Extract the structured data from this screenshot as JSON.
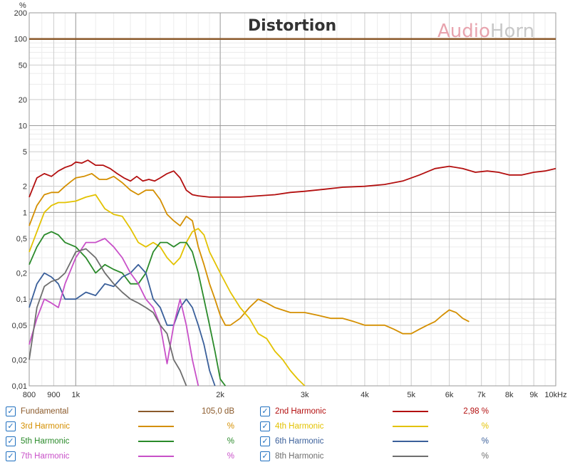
{
  "chart_data": {
    "type": "line",
    "title": "Distortion",
    "watermark": {
      "part1": "Audio",
      "part2": "Horn"
    },
    "ylabel": "%",
    "xlabel": "",
    "x_scale": "log",
    "y_scale": "log",
    "xlim": [
      800,
      10000
    ],
    "ylim": [
      0.01,
      200
    ],
    "x_ticks": [
      {
        "v": 800,
        "label": "800"
      },
      {
        "v": 900,
        "label": "900"
      },
      {
        "v": 1000,
        "label": "1k"
      },
      {
        "v": 2000,
        "label": "2k"
      },
      {
        "v": 3000,
        "label": "3k"
      },
      {
        "v": 4000,
        "label": "4k"
      },
      {
        "v": 5000,
        "label": "5k"
      },
      {
        "v": 6000,
        "label": "6k"
      },
      {
        "v": 7000,
        "label": "7k"
      },
      {
        "v": 8000,
        "label": "8k"
      },
      {
        "v": 9000,
        "label": "9k"
      },
      {
        "v": 10000,
        "label": "10kHz"
      }
    ],
    "y_ticks": [
      {
        "v": 200,
        "label": "200"
      },
      {
        "v": 100,
        "label": "100"
      },
      {
        "v": 50,
        "label": "50"
      },
      {
        "v": 20,
        "label": "20"
      },
      {
        "v": 10,
        "label": "10"
      },
      {
        "v": 5,
        "label": "5"
      },
      {
        "v": 2,
        "label": "2"
      },
      {
        "v": 1,
        "label": "1"
      },
      {
        "v": 0.5,
        "label": "0,5"
      },
      {
        "v": 0.2,
        "label": "0,2"
      },
      {
        "v": 0.1,
        "label": "0,1"
      },
      {
        "v": 0.05,
        "label": "0,05"
      },
      {
        "v": 0.02,
        "label": "0,02"
      },
      {
        "v": 0.01,
        "label": "0,01"
      }
    ],
    "series": [
      {
        "name": "Fundamental",
        "color": "#8b5a2b",
        "checked": "✓",
        "value": "105,0 dB",
        "points": [
          [
            800,
            100
          ],
          [
            10000,
            100
          ]
        ]
      },
      {
        "name": "2nd Harmonic",
        "color": "#b30f0f",
        "checked": "✓",
        "value": "2,98 %",
        "points": [
          [
            800,
            1.5
          ],
          [
            830,
            2.5
          ],
          [
            860,
            2.8
          ],
          [
            890,
            2.6
          ],
          [
            920,
            3.0
          ],
          [
            950,
            3.3
          ],
          [
            980,
            3.5
          ],
          [
            1000,
            3.8
          ],
          [
            1030,
            3.7
          ],
          [
            1060,
            4.0
          ],
          [
            1100,
            3.5
          ],
          [
            1140,
            3.5
          ],
          [
            1180,
            3.2
          ],
          [
            1220,
            2.8
          ],
          [
            1260,
            2.5
          ],
          [
            1300,
            2.3
          ],
          [
            1340,
            2.6
          ],
          [
            1380,
            2.3
          ],
          [
            1420,
            2.4
          ],
          [
            1460,
            2.3
          ],
          [
            1500,
            2.5
          ],
          [
            1550,
            2.8
          ],
          [
            1600,
            3.0
          ],
          [
            1650,
            2.5
          ],
          [
            1700,
            1.8
          ],
          [
            1750,
            1.6
          ],
          [
            1800,
            1.55
          ],
          [
            1900,
            1.5
          ],
          [
            2000,
            1.5
          ],
          [
            2200,
            1.5
          ],
          [
            2400,
            1.55
          ],
          [
            2600,
            1.6
          ],
          [
            2800,
            1.7
          ],
          [
            3000,
            1.75
          ],
          [
            3300,
            1.85
          ],
          [
            3600,
            1.95
          ],
          [
            4000,
            2.0
          ],
          [
            4400,
            2.1
          ],
          [
            4800,
            2.3
          ],
          [
            5200,
            2.7
          ],
          [
            5600,
            3.2
          ],
          [
            6000,
            3.4
          ],
          [
            6400,
            3.2
          ],
          [
            6800,
            2.9
          ],
          [
            7200,
            3.0
          ],
          [
            7600,
            2.9
          ],
          [
            8000,
            2.7
          ],
          [
            8500,
            2.7
          ],
          [
            9000,
            2.9
          ],
          [
            9500,
            3.0
          ],
          [
            10000,
            3.2
          ]
        ]
      },
      {
        "name": "3rd Harmonic",
        "color": "#d48f00",
        "checked": "✓",
        "value": "%",
        "points": [
          [
            800,
            0.7
          ],
          [
            830,
            1.2
          ],
          [
            860,
            1.6
          ],
          [
            890,
            1.7
          ],
          [
            920,
            1.7
          ],
          [
            950,
            2.0
          ],
          [
            980,
            2.3
          ],
          [
            1000,
            2.5
          ],
          [
            1040,
            2.6
          ],
          [
            1080,
            2.8
          ],
          [
            1120,
            2.4
          ],
          [
            1160,
            2.4
          ],
          [
            1200,
            2.6
          ],
          [
            1250,
            2.2
          ],
          [
            1300,
            1.8
          ],
          [
            1350,
            1.6
          ],
          [
            1400,
            1.8
          ],
          [
            1450,
            1.8
          ],
          [
            1500,
            1.4
          ],
          [
            1550,
            0.95
          ],
          [
            1600,
            0.8
          ],
          [
            1650,
            0.7
          ],
          [
            1700,
            0.9
          ],
          [
            1750,
            0.8
          ],
          [
            1800,
            0.4
          ],
          [
            1850,
            0.25
          ],
          [
            1900,
            0.15
          ],
          [
            1950,
            0.1
          ],
          [
            2000,
            0.065
          ],
          [
            2050,
            0.05
          ],
          [
            2100,
            0.05
          ],
          [
            2200,
            0.06
          ],
          [
            2300,
            0.08
          ],
          [
            2400,
            0.1
          ],
          [
            2500,
            0.09
          ],
          [
            2600,
            0.08
          ],
          [
            2800,
            0.07
          ],
          [
            3000,
            0.07
          ],
          [
            3200,
            0.065
          ],
          [
            3400,
            0.06
          ],
          [
            3600,
            0.06
          ],
          [
            3800,
            0.055
          ],
          [
            4000,
            0.05
          ],
          [
            4200,
            0.05
          ],
          [
            4400,
            0.05
          ],
          [
            4600,
            0.045
          ],
          [
            4800,
            0.04
          ],
          [
            5000,
            0.04
          ],
          [
            5200,
            0.045
          ],
          [
            5400,
            0.05
          ],
          [
            5600,
            0.055
          ],
          [
            5800,
            0.065
          ],
          [
            6000,
            0.075
          ],
          [
            6200,
            0.07
          ],
          [
            6400,
            0.06
          ],
          [
            6600,
            0.055
          ]
        ]
      },
      {
        "name": "4th Harmonic",
        "color": "#e3c200",
        "checked": "✓",
        "value": "%",
        "points": [
          [
            800,
            0.35
          ],
          [
            830,
            0.6
          ],
          [
            860,
            1.0
          ],
          [
            890,
            1.2
          ],
          [
            920,
            1.3
          ],
          [
            950,
            1.3
          ],
          [
            1000,
            1.35
          ],
          [
            1050,
            1.5
          ],
          [
            1100,
            1.6
          ],
          [
            1150,
            1.1
          ],
          [
            1200,
            0.95
          ],
          [
            1250,
            0.9
          ],
          [
            1300,
            0.65
          ],
          [
            1350,
            0.45
          ],
          [
            1400,
            0.4
          ],
          [
            1450,
            0.45
          ],
          [
            1500,
            0.4
          ],
          [
            1550,
            0.3
          ],
          [
            1600,
            0.25
          ],
          [
            1650,
            0.3
          ],
          [
            1700,
            0.45
          ],
          [
            1750,
            0.6
          ],
          [
            1800,
            0.65
          ],
          [
            1850,
            0.55
          ],
          [
            1900,
            0.35
          ],
          [
            2000,
            0.2
          ],
          [
            2100,
            0.12
          ],
          [
            2200,
            0.08
          ],
          [
            2300,
            0.06
          ],
          [
            2400,
            0.04
          ],
          [
            2500,
            0.035
          ],
          [
            2600,
            0.025
          ],
          [
            2700,
            0.02
          ],
          [
            2800,
            0.015
          ],
          [
            2900,
            0.012
          ],
          [
            3000,
            0.01
          ]
        ]
      },
      {
        "name": "5th Harmonic",
        "color": "#2a8a2a",
        "checked": "✓",
        "value": "%",
        "points": [
          [
            800,
            0.25
          ],
          [
            830,
            0.4
          ],
          [
            860,
            0.55
          ],
          [
            890,
            0.6
          ],
          [
            920,
            0.55
          ],
          [
            950,
            0.45
          ],
          [
            1000,
            0.4
          ],
          [
            1050,
            0.3
          ],
          [
            1100,
            0.2
          ],
          [
            1150,
            0.25
          ],
          [
            1200,
            0.22
          ],
          [
            1250,
            0.2
          ],
          [
            1300,
            0.15
          ],
          [
            1350,
            0.15
          ],
          [
            1400,
            0.2
          ],
          [
            1450,
            0.35
          ],
          [
            1500,
            0.45
          ],
          [
            1550,
            0.45
          ],
          [
            1600,
            0.4
          ],
          [
            1650,
            0.45
          ],
          [
            1700,
            0.45
          ],
          [
            1750,
            0.35
          ],
          [
            1800,
            0.2
          ],
          [
            1850,
            0.1
          ],
          [
            1900,
            0.05
          ],
          [
            1950,
            0.025
          ],
          [
            2000,
            0.012
          ],
          [
            2050,
            0.01
          ]
        ]
      },
      {
        "name": "6th Harmonic",
        "color": "#3a5f9a",
        "checked": "✓",
        "value": "%",
        "points": [
          [
            800,
            0.08
          ],
          [
            830,
            0.15
          ],
          [
            860,
            0.2
          ],
          [
            890,
            0.18
          ],
          [
            920,
            0.15
          ],
          [
            950,
            0.1
          ],
          [
            1000,
            0.1
          ],
          [
            1050,
            0.12
          ],
          [
            1100,
            0.11
          ],
          [
            1150,
            0.15
          ],
          [
            1200,
            0.14
          ],
          [
            1250,
            0.18
          ],
          [
            1300,
            0.2
          ],
          [
            1350,
            0.25
          ],
          [
            1400,
            0.2
          ],
          [
            1450,
            0.1
          ],
          [
            1500,
            0.08
          ],
          [
            1550,
            0.05
          ],
          [
            1600,
            0.05
          ],
          [
            1650,
            0.08
          ],
          [
            1700,
            0.1
          ],
          [
            1750,
            0.08
          ],
          [
            1800,
            0.05
          ],
          [
            1850,
            0.03
          ],
          [
            1900,
            0.015
          ],
          [
            1950,
            0.01
          ]
        ]
      },
      {
        "name": "7th Harmonic",
        "color": "#c850c8",
        "checked": "✓",
        "value": "%",
        "points": [
          [
            800,
            0.03
          ],
          [
            830,
            0.06
          ],
          [
            860,
            0.1
          ],
          [
            890,
            0.09
          ],
          [
            920,
            0.08
          ],
          [
            950,
            0.15
          ],
          [
            1000,
            0.3
          ],
          [
            1050,
            0.45
          ],
          [
            1100,
            0.45
          ],
          [
            1150,
            0.5
          ],
          [
            1200,
            0.4
          ],
          [
            1250,
            0.3
          ],
          [
            1300,
            0.2
          ],
          [
            1350,
            0.15
          ],
          [
            1400,
            0.1
          ],
          [
            1450,
            0.08
          ],
          [
            1500,
            0.05
          ],
          [
            1550,
            0.018
          ],
          [
            1600,
            0.05
          ],
          [
            1650,
            0.1
          ],
          [
            1700,
            0.05
          ],
          [
            1750,
            0.02
          ],
          [
            1800,
            0.01
          ]
        ]
      },
      {
        "name": "8th Harmonic",
        "color": "#6e6e6e",
        "checked": "✓",
        "value": "%",
        "points": [
          [
            800,
            0.02
          ],
          [
            830,
            0.08
          ],
          [
            860,
            0.14
          ],
          [
            890,
            0.16
          ],
          [
            920,
            0.17
          ],
          [
            950,
            0.2
          ],
          [
            1000,
            0.35
          ],
          [
            1050,
            0.38
          ],
          [
            1100,
            0.3
          ],
          [
            1150,
            0.2
          ],
          [
            1200,
            0.15
          ],
          [
            1250,
            0.12
          ],
          [
            1300,
            0.1
          ],
          [
            1350,
            0.09
          ],
          [
            1400,
            0.08
          ],
          [
            1450,
            0.07
          ],
          [
            1500,
            0.05
          ],
          [
            1550,
            0.04
          ],
          [
            1600,
            0.02
          ],
          [
            1650,
            0.015
          ],
          [
            1700,
            0.01
          ]
        ]
      }
    ]
  }
}
